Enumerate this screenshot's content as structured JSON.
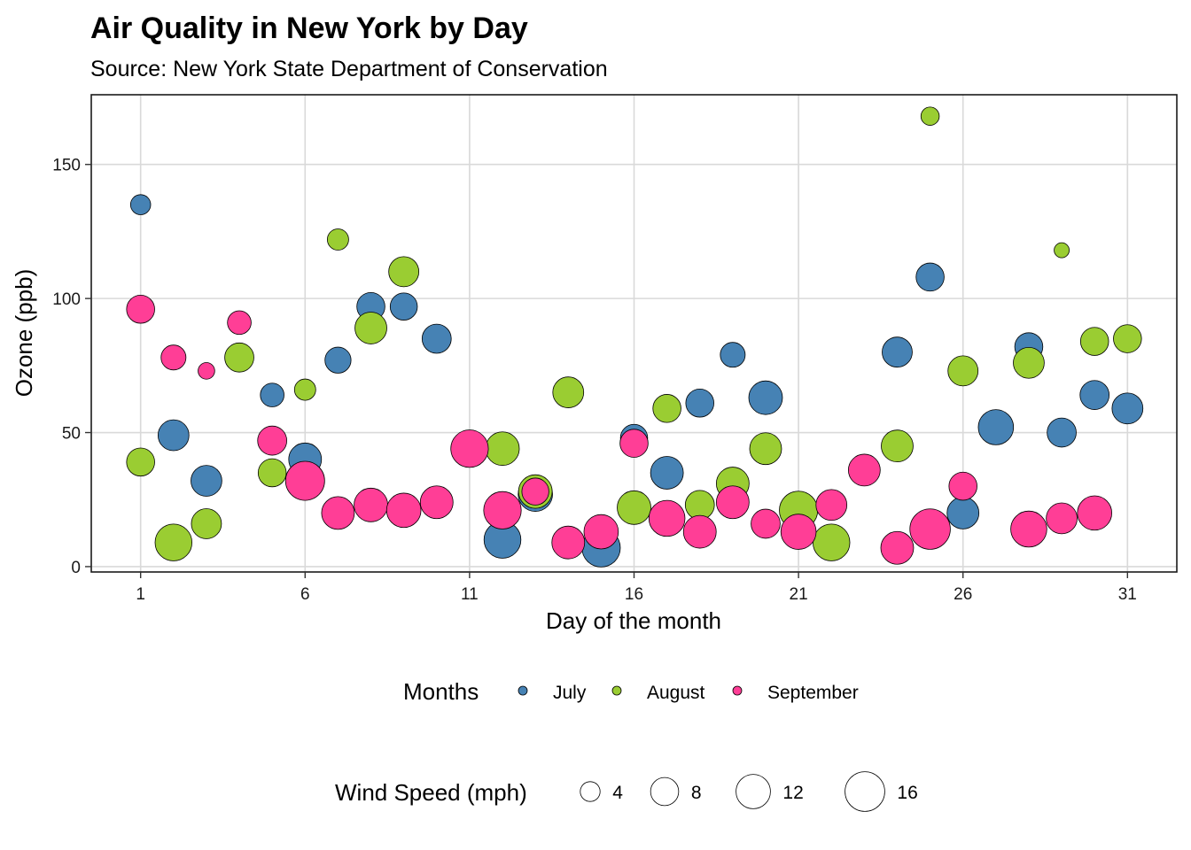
{
  "chart_data": {
    "type": "scatter",
    "title": "Air Quality in New York by Day",
    "subtitle": "Source: New York State Department of Conservation",
    "xlabel": "Day of the month",
    "ylabel": "Ozone (ppb)",
    "xlim": [
      -0.5,
      32.5
    ],
    "ylim": [
      -2,
      176
    ],
    "xticks": [
      1,
      6,
      11,
      16,
      21,
      26,
      31
    ],
    "yticks": [
      0,
      50,
      100,
      150
    ],
    "grid": true,
    "size_variable": "Wind Speed (mph)",
    "color_legend_title": "Months",
    "size_legend_title": "Wind Speed (mph)",
    "size_legend_values": [
      4,
      8,
      12,
      16
    ],
    "legend_position": "bottom",
    "series": [
      {
        "name": "July",
        "color": "#4682B4",
        "points": [
          {
            "x": 1,
            "y": 135,
            "size": 4.1
          },
          {
            "x": 2,
            "y": 49,
            "size": 9.7
          },
          {
            "x": 3,
            "y": 32,
            "size": 9.7
          },
          {
            "x": 5,
            "y": 64,
            "size": 5.7
          },
          {
            "x": 6,
            "y": 40,
            "size": 10.9
          },
          {
            "x": 7,
            "y": 77,
            "size": 6.9
          },
          {
            "x": 8,
            "y": 97,
            "size": 8.0
          },
          {
            "x": 9,
            "y": 97,
            "size": 7.5
          },
          {
            "x": 10,
            "y": 85,
            "size": 8.6
          },
          {
            "x": 12,
            "y": 10,
            "size": 13.8
          },
          {
            "x": 13,
            "y": 27,
            "size": 12.0
          },
          {
            "x": 15,
            "y": 7,
            "size": 14.9
          },
          {
            "x": 16,
            "y": 48,
            "size": 7.5
          },
          {
            "x": 17,
            "y": 35,
            "size": 10.9
          },
          {
            "x": 18,
            "y": 61,
            "size": 8.0
          },
          {
            "x": 19,
            "y": 79,
            "size": 6.3
          },
          {
            "x": 20,
            "y": 63,
            "size": 11.5
          },
          {
            "x": 24,
            "y": 80,
            "size": 9.2
          },
          {
            "x": 25,
            "y": 108,
            "size": 8.0
          },
          {
            "x": 26,
            "y": 20,
            "size": 10.3
          },
          {
            "x": 27,
            "y": 52,
            "size": 12.6
          },
          {
            "x": 28,
            "y": 82,
            "size": 8.0
          },
          {
            "x": 29,
            "y": 50,
            "size": 8.6
          },
          {
            "x": 30,
            "y": 64,
            "size": 8.6
          },
          {
            "x": 31,
            "y": 59,
            "size": 9.7
          }
        ]
      },
      {
        "name": "August",
        "color": "#9ACD32",
        "points": [
          {
            "x": 1,
            "y": 39,
            "size": 8.0
          },
          {
            "x": 2,
            "y": 9,
            "size": 13.8
          },
          {
            "x": 3,
            "y": 16,
            "size": 9.2
          },
          {
            "x": 4,
            "y": 78,
            "size": 8.6
          },
          {
            "x": 5,
            "y": 35,
            "size": 8.0
          },
          {
            "x": 6,
            "y": 66,
            "size": 4.6
          },
          {
            "x": 7,
            "y": 122,
            "size": 4.6
          },
          {
            "x": 8,
            "y": 89,
            "size": 10.3
          },
          {
            "x": 9,
            "y": 110,
            "size": 9.2
          },
          {
            "x": 12,
            "y": 44,
            "size": 11.5
          },
          {
            "x": 13,
            "y": 28,
            "size": 11.5
          },
          {
            "x": 14,
            "y": 65,
            "size": 9.7
          },
          {
            "x": 16,
            "y": 22,
            "size": 11.5
          },
          {
            "x": 17,
            "y": 59,
            "size": 8.0
          },
          {
            "x": 18,
            "y": 23,
            "size": 8.6
          },
          {
            "x": 19,
            "y": 31,
            "size": 10.9
          },
          {
            "x": 20,
            "y": 44,
            "size": 10.3
          },
          {
            "x": 21,
            "y": 21,
            "size": 14.9
          },
          {
            "x": 22,
            "y": 9,
            "size": 13.8
          },
          {
            "x": 24,
            "y": 45,
            "size": 10.3
          },
          {
            "x": 25,
            "y": 168,
            "size": 3.4
          },
          {
            "x": 26,
            "y": 73,
            "size": 9.2
          },
          {
            "x": 28,
            "y": 76,
            "size": 9.7
          },
          {
            "x": 29,
            "y": 118,
            "size": 2.3
          },
          {
            "x": 30,
            "y": 84,
            "size": 8.0
          },
          {
            "x": 31,
            "y": 85,
            "size": 8.0
          }
        ]
      },
      {
        "name": "September",
        "color": "#FF3E96",
        "points": [
          {
            "x": 1,
            "y": 96,
            "size": 8.0
          },
          {
            "x": 2,
            "y": 78,
            "size": 6.3
          },
          {
            "x": 3,
            "y": 73,
            "size": 2.8
          },
          {
            "x": 4,
            "y": 91,
            "size": 5.7
          },
          {
            "x": 5,
            "y": 47,
            "size": 8.6
          },
          {
            "x": 6,
            "y": 32,
            "size": 15.5
          },
          {
            "x": 7,
            "y": 20,
            "size": 10.9
          },
          {
            "x": 8,
            "y": 23,
            "size": 11.5
          },
          {
            "x": 9,
            "y": 21,
            "size": 12.0
          },
          {
            "x": 10,
            "y": 24,
            "size": 10.9
          },
          {
            "x": 11,
            "y": 44,
            "size": 14.3
          },
          {
            "x": 12,
            "y": 21,
            "size": 14.3
          },
          {
            "x": 13,
            "y": 28,
            "size": 7.4
          },
          {
            "x": 14,
            "y": 9,
            "size": 10.9
          },
          {
            "x": 15,
            "y": 13,
            "size": 12.0
          },
          {
            "x": 16,
            "y": 46,
            "size": 8.0
          },
          {
            "x": 17,
            "y": 18,
            "size": 13.2
          },
          {
            "x": 18,
            "y": 13,
            "size": 10.9
          },
          {
            "x": 19,
            "y": 24,
            "size": 10.9
          },
          {
            "x": 20,
            "y": 16,
            "size": 8.6
          },
          {
            "x": 21,
            "y": 13,
            "size": 12.6
          },
          {
            "x": 22,
            "y": 23,
            "size": 9.7
          },
          {
            "x": 23,
            "y": 36,
            "size": 10.3
          },
          {
            "x": 24,
            "y": 7,
            "size": 10.9
          },
          {
            "x": 25,
            "y": 14,
            "size": 16.6
          },
          {
            "x": 26,
            "y": 30,
            "size": 8.0
          },
          {
            "x": 28,
            "y": 14,
            "size": 13.2
          },
          {
            "x": 29,
            "y": 18,
            "size": 9.7
          },
          {
            "x": 30,
            "y": 20,
            "size": 12.0
          }
        ]
      }
    ]
  }
}
